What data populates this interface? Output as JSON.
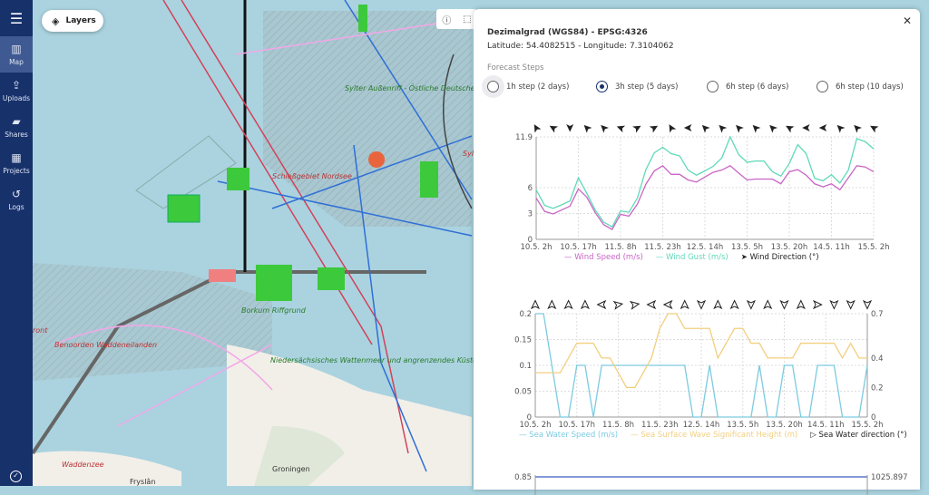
{
  "sidebar": {
    "menu_icon": "hamburger-icon",
    "items": [
      {
        "label": "Map",
        "icon": "map-icon",
        "active": true
      },
      {
        "label": "Uploads",
        "icon": "upload-icon"
      },
      {
        "label": "Shares",
        "icon": "shared-folder-icon"
      },
      {
        "label": "Projects",
        "icon": "projects-icon"
      },
      {
        "label": "Logs",
        "icon": "history-icon"
      }
    ]
  },
  "map": {
    "layers_button": "Layers",
    "labels": {
      "sylt_reef": "Sylter Außenriff - Östliche Deutsche Bucht",
      "firing_range": "Schießgebiet Nordsee",
      "benoorden": "Benoorden Waddeneilanden",
      "wattenmeer": "Niedersächsisches Wattenmeer und angrenzendes Küstenmeer",
      "borkum": "Borkum Riffgrund",
      "waddenzee": "Waddenzee",
      "groningen": "Groningen",
      "fryslan": "Fryslân",
      "front": "ront",
      "sylt": "Syl"
    },
    "colors": {
      "water": "#aad3df",
      "land": "#f2efe9"
    }
  },
  "panel": {
    "crs": "Dezimalgrad (WGS84) - EPSG:4326",
    "coords": "Latitude: 54.4082515 - Longitude: 7.3104062",
    "forecast_label": "Forecast Steps",
    "steps": [
      {
        "label": "1h step (2 days)",
        "selected": false
      },
      {
        "label": "3h step (5 days)",
        "selected": true
      },
      {
        "label": "6h step (6 days)",
        "selected": false
      },
      {
        "label": "6h step (10 days)",
        "selected": false
      }
    ]
  },
  "chart_data": [
    {
      "type": "line",
      "x_ticks": [
        "10.5. 2h",
        "10.5. 17h",
        "11.5. 8h",
        "11.5. 23h",
        "12.5. 14h",
        "13.5. 5h",
        "13.5. 20h",
        "14.5. 11h",
        "15.5. 2h"
      ],
      "x_step_hours": 3,
      "y_ticks": [
        "0",
        "3",
        "6",
        "11.9"
      ],
      "ylim": [
        0,
        11.9
      ],
      "grid": true,
      "legend_position": "bottom",
      "series": [
        {
          "name": "Wind Speed (m/s)",
          "color": "#c964c6",
          "values": [
            4.8,
            3.25,
            2.95,
            3.4,
            3.85,
            5.85,
            4.9,
            3.1,
            1.7,
            1.15,
            2.9,
            2.7,
            4.1,
            6.4,
            7.95,
            8.55,
            7.55,
            7.55,
            6.9,
            6.65,
            7.25,
            7.8,
            8.05,
            8.55,
            7.7,
            6.9,
            7.0,
            7.0,
            7.0,
            6.45,
            7.85,
            8.1,
            7.45,
            6.45,
            6.1,
            6.45,
            5.75,
            7.15,
            8.55,
            8.4,
            7.85
          ]
        },
        {
          "name": "Wind Gust (m/s)",
          "color": "#5fd9b8",
          "values": [
            5.75,
            3.95,
            3.6,
            4.0,
            4.45,
            7.15,
            5.35,
            3.4,
            2.0,
            1.45,
            3.3,
            3.15,
            4.8,
            8.1,
            10.05,
            10.7,
            9.95,
            9.7,
            8.05,
            7.45,
            7.95,
            8.5,
            9.45,
            11.9,
            9.85,
            8.95,
            9.1,
            9.1,
            7.85,
            7.35,
            8.8,
            11.0,
            9.95,
            7.1,
            6.8,
            7.5,
            6.55,
            8.05,
            11.7,
            11.35,
            10.5
          ]
        }
      ],
      "direction": {
        "name": "Wind Direction (°)",
        "style": "filled",
        "degrees": [
          330,
          300,
          180,
          315,
          315,
          290,
          60,
          60,
          330,
          270,
          315,
          315,
          315,
          315,
          315,
          300,
          270,
          270,
          315,
          315,
          300
        ]
      }
    },
    {
      "type": "line",
      "x_ticks": [
        "10.5. 2h",
        "10.5. 17h",
        "11.5. 8h",
        "11.5. 23h",
        "12.5. 14h",
        "13.5. 5h",
        "13.5. 20h",
        "14.5. 11h",
        "15.5. 2h"
      ],
      "x_step_hours": 3,
      "y_ticks": [
        "0",
        "0.05",
        "0.1",
        "0.15",
        "0.2"
      ],
      "ylim": [
        0,
        0.2
      ],
      "y2_ticks": [
        "0",
        "0.2",
        "0.4",
        "0.7"
      ],
      "y2lim": [
        0,
        0.7
      ],
      "grid": true,
      "legend_position": "bottom",
      "series": [
        {
          "name": "Sea Water Speed (m/s)",
          "color": "#7ccbe0",
          "axis": "left",
          "values": [
            0.2,
            0.2,
            0.1,
            0,
            0,
            0.1,
            0.1,
            0,
            0.1,
            0.1,
            0.1,
            0.1,
            0.1,
            0.1,
            0.1,
            0.1,
            0.1,
            0.1,
            0.1,
            0,
            0,
            0.1,
            0,
            0,
            0,
            0,
            0,
            0.1,
            0,
            0,
            0.1,
            0.1,
            0,
            0,
            0.1,
            0.1,
            0.1,
            0,
            0,
            0,
            0.1
          ]
        },
        {
          "name": "Sea Surface Wave Significant Height (m)",
          "color": "#f2cf7e",
          "axis": "right",
          "values": [
            0.3,
            0.3,
            0.3,
            0.3,
            0.4,
            0.5,
            0.5,
            0.5,
            0.4,
            0.4,
            0.3,
            0.2,
            0.2,
            0.3,
            0.4,
            0.6,
            0.7,
            0.7,
            0.6,
            0.6,
            0.6,
            0.6,
            0.4,
            0.5,
            0.6,
            0.6,
            0.5,
            0.5,
            0.4,
            0.4,
            0.4,
            0.4,
            0.5,
            0.5,
            0.5,
            0.5,
            0.5,
            0.4,
            0.5,
            0.4,
            0.4
          ]
        }
      ],
      "direction": {
        "name": "Sea Water direction (°)",
        "style": "outline",
        "degrees": [
          0,
          0,
          0,
          0,
          270,
          80,
          80,
          270,
          270,
          0,
          180,
          0,
          0,
          180,
          0,
          180,
          0,
          90,
          180,
          180,
          180
        ]
      }
    },
    {
      "type": "line",
      "y_ticks": [
        "0.85"
      ],
      "y2_ticks": [
        "1025.897"
      ]
    }
  ]
}
